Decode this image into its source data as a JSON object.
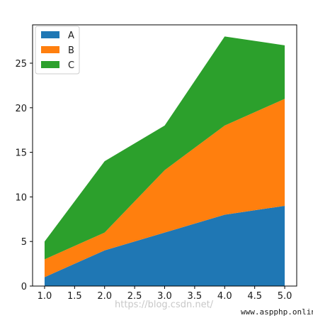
{
  "chart_data": {
    "type": "area",
    "stacked": true,
    "x": [
      1.0,
      2.0,
      3.0,
      4.0,
      5.0
    ],
    "series": [
      {
        "name": "A",
        "values": [
          1,
          4,
          6,
          8,
          9
        ],
        "color": "#1f77b4"
      },
      {
        "name": "B",
        "values": [
          2,
          2,
          7,
          10,
          12
        ],
        "color": "#ff7f0e"
      },
      {
        "name": "C",
        "values": [
          2,
          8,
          5,
          10,
          6
        ],
        "color": "#2ca02c"
      }
    ],
    "xticks": [
      "1.0",
      "1.5",
      "2.0",
      "2.5",
      "3.0",
      "3.5",
      "4.0",
      "4.5",
      "5.0"
    ],
    "xtick_values": [
      1.0,
      1.5,
      2.0,
      2.5,
      3.0,
      3.5,
      4.0,
      4.5,
      5.0
    ],
    "yticks": [
      "0",
      "5",
      "10",
      "15",
      "20",
      "25"
    ],
    "ytick_values": [
      0,
      5,
      10,
      15,
      20,
      25
    ],
    "xlim": [
      0.8,
      5.2
    ],
    "ylim": [
      0,
      29.3
    ],
    "grid": false,
    "legend_position": "upper-left",
    "title": "",
    "xlabel": "",
    "ylabel": ""
  },
  "overlay": {
    "watermark": "https://blog.csdn.net/",
    "site_mark": "www.aspphp.online"
  }
}
